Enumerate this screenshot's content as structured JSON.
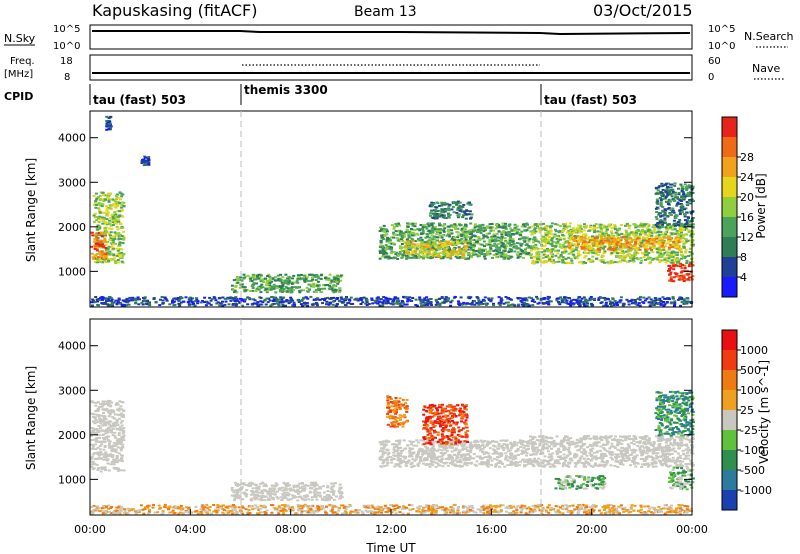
{
  "header": {
    "site_title": "Kapuskasing (fitACF)",
    "beam_label": "Beam 13",
    "date": "03/Oct/2015"
  },
  "strip_panels": {
    "nsky_label": "N.Sky",
    "nsky_ticks": [
      "10^5",
      "10^0"
    ],
    "nsearch_label": "N.Search",
    "freq_label": "Freq.",
    "freq_unit": "[MHz]",
    "freq_ticks": [
      "18",
      "8"
    ],
    "nave_label": "Nave",
    "nave_ticks": [
      "60",
      "0"
    ],
    "cpid_label": "CPID",
    "cpid_segments": [
      {
        "label": "tau (fast) 503",
        "start_h": 0
      },
      {
        "label": "themis 3300",
        "start_h": 6
      },
      {
        "label": "tau (fast) 503",
        "start_h": 18
      }
    ]
  },
  "colors": {
    "power_scale": [
      "#1a1aff",
      "#1f3f99",
      "#2e7d55",
      "#4aa35a",
      "#8fce3c",
      "#e5d61c",
      "#f2a11c",
      "#f06a15",
      "#e8241a"
    ],
    "velocity_scale": [
      "#1a3fb0",
      "#2a7b9c",
      "#2f8f4e",
      "#5fc23a",
      "#c8c8c0",
      "#f0a020",
      "#f07a10",
      "#f03c10",
      "#e81010"
    ],
    "ground_scatter": "#c8c8c0",
    "dashed_line": "#bbbbbb"
  },
  "chart_data": [
    {
      "type": "heatmap",
      "panel": "power",
      "xlabel": "",
      "ylabel": "Slant Range [km]",
      "yticks": [
        "1000",
        "2000",
        "3000",
        "4000"
      ],
      "ylim": [
        200,
        4600
      ],
      "xlim_h": [
        0,
        24
      ],
      "colorbar_label": "Power [dB]",
      "colorbar_ticks": [
        "4",
        "8",
        "12",
        "16",
        "20",
        "24",
        "28"
      ],
      "regions": [
        {
          "t0": 0.1,
          "t1": 1.3,
          "r0": 1200,
          "r1": 2800,
          "kind": "power",
          "level": 4
        },
        {
          "t0": 0.0,
          "t1": 0.6,
          "r0": 1300,
          "r1": 1900,
          "kind": "power",
          "level": 7
        },
        {
          "t0": 2.0,
          "t1": 2.3,
          "r0": 3400,
          "r1": 3600,
          "kind": "power",
          "level": 1
        },
        {
          "t0": 0.6,
          "t1": 0.8,
          "r0": 4200,
          "r1": 4500,
          "kind": "power",
          "level": 1
        },
        {
          "t0": 5.6,
          "t1": 10.0,
          "r0": 550,
          "r1": 950,
          "kind": "power",
          "level": 3
        },
        {
          "t0": 0.0,
          "t1": 24.0,
          "r0": 250,
          "r1": 450,
          "kind": "power",
          "level": 1
        },
        {
          "t0": 11.5,
          "t1": 17.5,
          "r0": 1300,
          "r1": 2100,
          "kind": "power",
          "level": 3
        },
        {
          "t0": 12.5,
          "t1": 15.0,
          "r0": 1350,
          "r1": 1700,
          "kind": "power",
          "level": 5
        },
        {
          "t0": 17.5,
          "t1": 24.0,
          "r0": 1200,
          "r1": 2100,
          "kind": "power",
          "level": 4
        },
        {
          "t0": 19.0,
          "t1": 23.5,
          "r0": 1500,
          "r1": 1800,
          "kind": "power",
          "level": 6
        },
        {
          "t0": 23.0,
          "t1": 24.0,
          "r0": 800,
          "r1": 1200,
          "kind": "power",
          "level": 8
        },
        {
          "t0": 13.5,
          "t1": 15.2,
          "r0": 2200,
          "r1": 2600,
          "kind": "power",
          "level": 2
        },
        {
          "t0": 22.5,
          "t1": 24.0,
          "r0": 2000,
          "r1": 3000,
          "kind": "power",
          "level": 2
        }
      ]
    },
    {
      "type": "heatmap",
      "panel": "velocity",
      "xlabel": "Time UT",
      "ylabel": "Slant Range [km]",
      "yticks": [
        "1000",
        "2000",
        "3000",
        "4000"
      ],
      "xticks": [
        "00:00",
        "04:00",
        "08:00",
        "12:00",
        "16:00",
        "20:00",
        "00:00"
      ],
      "ylim": [
        200,
        4600
      ],
      "xlim_h": [
        0,
        24
      ],
      "colorbar_label": "Velocity [m s^-1]",
      "colorbar_ticks": [
        "1000",
        "500",
        "100",
        "25",
        "-25",
        "-100",
        "-500",
        "-1000"
      ],
      "regions": [
        {
          "t0": 0.0,
          "t1": 1.3,
          "r0": 1200,
          "r1": 2800,
          "kind": "ground"
        },
        {
          "t0": 5.6,
          "t1": 10.0,
          "r0": 550,
          "r1": 950,
          "kind": "ground"
        },
        {
          "t0": 0.0,
          "t1": 24.0,
          "r0": 250,
          "r1": 450,
          "kind": "vel",
          "level": 5
        },
        {
          "t0": 11.5,
          "t1": 17.5,
          "r0": 1300,
          "r1": 1900,
          "kind": "ground"
        },
        {
          "t0": 17.5,
          "t1": 24.0,
          "r0": 1300,
          "r1": 2000,
          "kind": "ground"
        },
        {
          "t0": 13.2,
          "t1": 15.0,
          "r0": 1800,
          "r1": 2700,
          "kind": "vel",
          "level": 7
        },
        {
          "t0": 11.8,
          "t1": 12.6,
          "r0": 2200,
          "r1": 2900,
          "kind": "vel",
          "level": 6
        },
        {
          "t0": 23.0,
          "t1": 24.0,
          "r0": 800,
          "r1": 1300,
          "kind": "vel",
          "level": 3
        },
        {
          "t0": 22.5,
          "t1": 24.0,
          "r0": 2000,
          "r1": 3000,
          "kind": "vel",
          "level": 2
        },
        {
          "t0": 18.5,
          "t1": 20.5,
          "r0": 800,
          "r1": 1100,
          "kind": "vel",
          "level": 3
        }
      ]
    }
  ]
}
